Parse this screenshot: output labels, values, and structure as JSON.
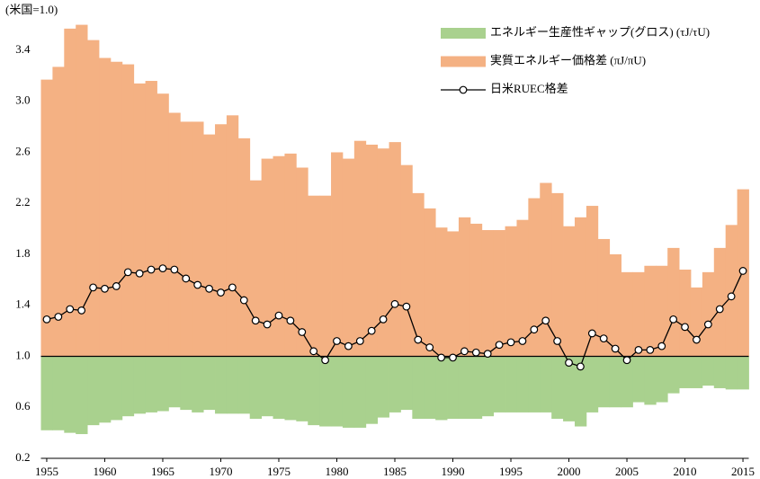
{
  "chart_data": {
    "type": "combo",
    "y_label": "(米国=1.0)",
    "x": [
      1955,
      1956,
      1957,
      1958,
      1959,
      1960,
      1961,
      1962,
      1963,
      1964,
      1965,
      1966,
      1967,
      1968,
      1969,
      1970,
      1971,
      1972,
      1973,
      1974,
      1975,
      1976,
      1977,
      1978,
      1979,
      1980,
      1981,
      1982,
      1983,
      1984,
      1985,
      1986,
      1987,
      1988,
      1989,
      1990,
      1991,
      1992,
      1993,
      1994,
      1995,
      1996,
      1997,
      1998,
      1999,
      2000,
      2001,
      2002,
      2003,
      2004,
      2005,
      2006,
      2007,
      2008,
      2009,
      2010,
      2011,
      2012,
      2013,
      2014,
      2015
    ],
    "xlim": [
      1954.5,
      2015.5
    ],
    "xticks": [
      1955,
      1960,
      1965,
      1970,
      1975,
      1980,
      1985,
      1990,
      1995,
      2000,
      2005,
      2010,
      2015
    ],
    "ylim": [
      0.2,
      3.7
    ],
    "yticks": [
      {
        "value": 0.2,
        "label": "0.2"
      },
      {
        "value": 0.6,
        "label": "0.6"
      },
      {
        "value": 1,
        "label": "1.0"
      },
      {
        "value": 1.4,
        "label": "1.4"
      },
      {
        "value": 1.8,
        "label": "1.8"
      },
      {
        "value": 2.2,
        "label": "2.2"
      },
      {
        "value": 2.6,
        "label": "2.6"
      },
      {
        "value": 3,
        "label": "3.0"
      },
      {
        "value": 3.4,
        "label": "3.4"
      }
    ],
    "baseline": 1,
    "series": [
      {
        "name": "エネルギー生産性ギャップ(グロス) (τJ/τU)",
        "type": "bar",
        "color": "#a9d18e",
        "values": [
          0.42,
          0.42,
          0.4,
          0.39,
          0.46,
          0.48,
          0.5,
          0.53,
          0.55,
          0.56,
          0.57,
          0.6,
          0.58,
          0.56,
          0.58,
          0.55,
          0.55,
          0.55,
          0.51,
          0.53,
          0.51,
          0.5,
          0.49,
          0.46,
          0.45,
          0.45,
          0.44,
          0.44,
          0.47,
          0.52,
          0.56,
          0.58,
          0.51,
          0.51,
          0.5,
          0.51,
          0.51,
          0.51,
          0.53,
          0.56,
          0.56,
          0.56,
          0.56,
          0.56,
          0.51,
          0.49,
          0.45,
          0.56,
          0.6,
          0.6,
          0.6,
          0.64,
          0.62,
          0.64,
          0.71,
          0.75,
          0.75,
          0.77,
          0.75,
          0.74,
          0.74
        ]
      },
      {
        "name": "実質エネルギー価格差 (πJ/πU)",
        "type": "bar",
        "color": "#f4b183",
        "values": [
          3.17,
          3.27,
          3.57,
          3.6,
          3.48,
          3.34,
          3.31,
          3.29,
          3.14,
          3.16,
          3.06,
          2.91,
          2.84,
          2.84,
          2.74,
          2.82,
          2.89,
          2.71,
          2.38,
          2.55,
          2.57,
          2.59,
          2.48,
          2.26,
          2.26,
          2.6,
          2.55,
          2.69,
          2.66,
          2.63,
          2.68,
          2.5,
          2.28,
          2.16,
          2.01,
          1.98,
          2.09,
          2.04,
          1.99,
          1.99,
          2.02,
          2.07,
          2.24,
          2.36,
          2.28,
          2.02,
          2.09,
          2.18,
          1.92,
          1.8,
          1.66,
          1.66,
          1.71,
          1.71,
          1.85,
          1.68,
          1.54,
          1.66,
          1.85,
          2.03,
          2.31
        ]
      },
      {
        "name": "日米RUEC格差",
        "type": "line",
        "color": "#000000",
        "values": [
          1.29,
          1.31,
          1.37,
          1.36,
          1.54,
          1.53,
          1.55,
          1.66,
          1.65,
          1.68,
          1.69,
          1.68,
          1.61,
          1.56,
          1.53,
          1.5,
          1.54,
          1.44,
          1.28,
          1.25,
          1.32,
          1.28,
          1.19,
          1.04,
          0.97,
          1.12,
          1.08,
          1.12,
          1.2,
          1.29,
          1.41,
          1.39,
          1.13,
          1.07,
          0.99,
          0.99,
          1.04,
          1.03,
          1.02,
          1.09,
          1.11,
          1.12,
          1.21,
          1.28,
          1.12,
          0.95,
          0.92,
          1.18,
          1.14,
          1.06,
          0.97,
          1.05,
          1.05,
          1.08,
          1.29,
          1.23,
          1.13,
          1.25,
          1.37,
          1.47,
          1.67
        ]
      }
    ]
  }
}
